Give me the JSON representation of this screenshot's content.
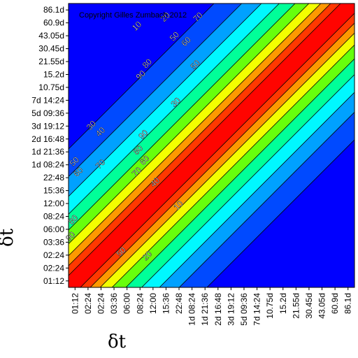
{
  "chart_data": {
    "type": "heatmap",
    "copyright": "Copyright Gilles Zumbach 2012",
    "xlabel": "δt",
    "ylabel": "δt",
    "ticks": [
      "01:12",
      "02:24",
      "02:24",
      "03:36",
      "06:00",
      "08:24",
      "12:00",
      "15:36",
      "22:48",
      "1d 08:24",
      "1d 21:36",
      "2d 16:48",
      "3d 19:12",
      "5d 09:36",
      "7d 14:24",
      "10.75d",
      "15.2d",
      "21.55d",
      "30.45d",
      "43.05d",
      "60.9d",
      "86.1d"
    ],
    "contour_levels": [
      10,
      20,
      30,
      40,
      50,
      60,
      70,
      80,
      90
    ],
    "contour_labels": [
      {
        "text": "10",
        "x": 5.4,
        "y": 20.1
      },
      {
        "text": "20",
        "x": 7.6,
        "y": 20.8
      },
      {
        "text": "70",
        "x": 10.1,
        "y": 20.8
      },
      {
        "text": "50",
        "x": 8.3,
        "y": 19.3
      },
      {
        "text": "60",
        "x": 9.2,
        "y": 18.9
      },
      {
        "text": "80",
        "x": 6.2,
        "y": 17.2
      },
      {
        "text": "90",
        "x": 5.7,
        "y": 16.3
      },
      {
        "text": "50",
        "x": 9.9,
        "y": 17.1
      },
      {
        "text": "30",
        "x": 8.4,
        "y": 14.2
      },
      {
        "text": "30",
        "x": 1.9,
        "y": 12.4
      },
      {
        "text": "40",
        "x": 2.6,
        "y": 11.9
      },
      {
        "text": "90",
        "x": 5.9,
        "y": 11.7
      },
      {
        "text": "80",
        "x": 5.5,
        "y": 10.5
      },
      {
        "text": "60",
        "x": 6.0,
        "y": 9.7
      },
      {
        "text": "70",
        "x": 5.4,
        "y": 8.8
      },
      {
        "text": "40",
        "x": 6.8,
        "y": 8.0
      },
      {
        "text": "50",
        "x": 0.6,
        "y": 9.6
      },
      {
        "text": "60",
        "x": 0.9,
        "y": 8.8
      },
      {
        "text": "70",
        "x": 2.6,
        "y": 9.4
      },
      {
        "text": "10",
        "x": 8.6,
        "y": 6.2
      },
      {
        "text": "80",
        "x": 0.5,
        "y": 5.1
      },
      {
        "text": "90",
        "x": 0.3,
        "y": 3.8
      },
      {
        "text": "50",
        "x": 4.2,
        "y": 2.6
      },
      {
        "text": "20",
        "x": 6.2,
        "y": 2.3
      }
    ]
  }
}
